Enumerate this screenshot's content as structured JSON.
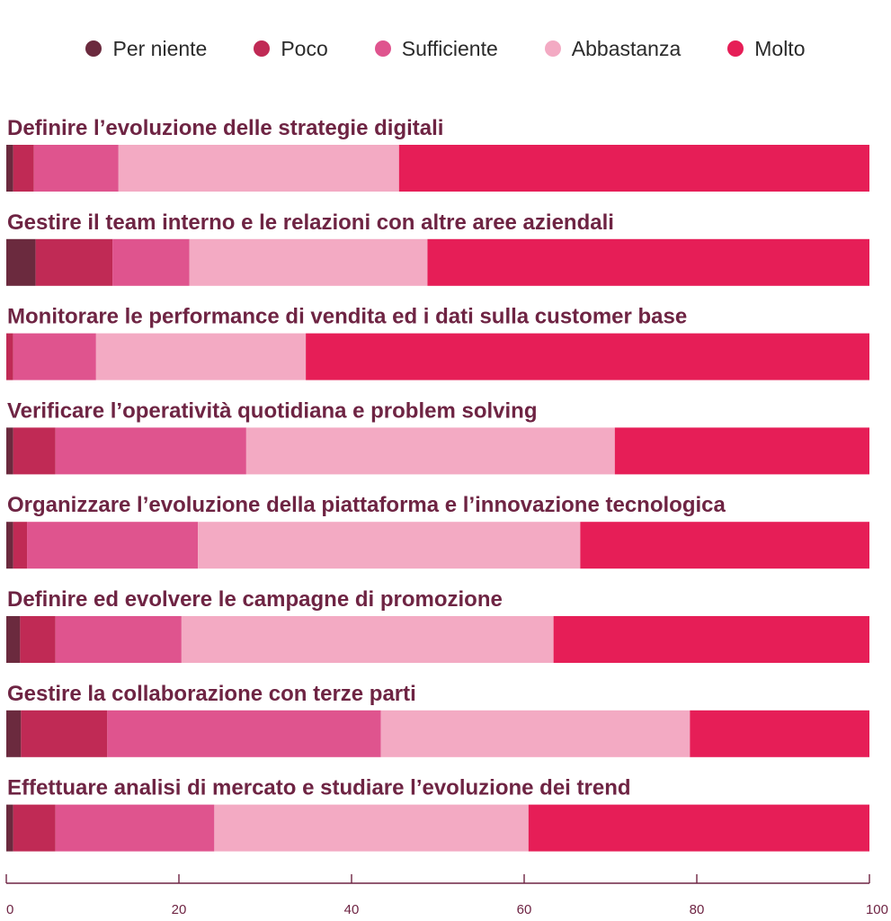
{
  "chart_data": {
    "type": "bar",
    "orientation": "horizontal",
    "stacked": true,
    "legend_position": "top",
    "series": [
      {
        "name": "Per niente",
        "color": "#6b2a3e"
      },
      {
        "name": "Poco",
        "color": "#c02a55"
      },
      {
        "name": "Sufficiente",
        "color": "#df548e"
      },
      {
        "name": "Abbastanza",
        "color": "#f3aac3"
      },
      {
        "name": "Molto",
        "color": "#e61e57"
      }
    ],
    "categories": [
      "Definire l’evoluzione delle strategie digitali",
      "Gestire il team interno e le relazioni con altre aree aziendali",
      "Monitorare le performance di vendita ed i dati sulla customer base",
      "Verificare l’operatività quotidiana e problem solving",
      "Organizzare l’evoluzione della piattaforma e l’innovazione tecnologica",
      "Definire ed evolvere le campagne di promozione",
      "Gestire la collaborazione con terze parti",
      "Effettuare analisi di mercato e studiare l’evoluzione dei trend"
    ],
    "values": [
      [
        0.8,
        2.4,
        9.8,
        32.5,
        54.5
      ],
      [
        3.4,
        8.9,
        8.9,
        27.6,
        51.2
      ],
      [
        0.0,
        0.8,
        9.6,
        24.3,
        65.3
      ],
      [
        0.8,
        4.9,
        22.1,
        42.7,
        29.5
      ],
      [
        0.8,
        1.6,
        19.8,
        44.3,
        33.5
      ],
      [
        1.6,
        4.1,
        14.6,
        43.1,
        36.6
      ],
      [
        1.7,
        10.0,
        31.7,
        35.8,
        20.8
      ],
      [
        0.8,
        4.9,
        18.4,
        36.4,
        39.5
      ]
    ],
    "xlim": [
      0,
      100
    ],
    "xticks": [
      0,
      20,
      40,
      60,
      80,
      100
    ],
    "title": "",
    "xlabel": "",
    "ylabel": ""
  }
}
